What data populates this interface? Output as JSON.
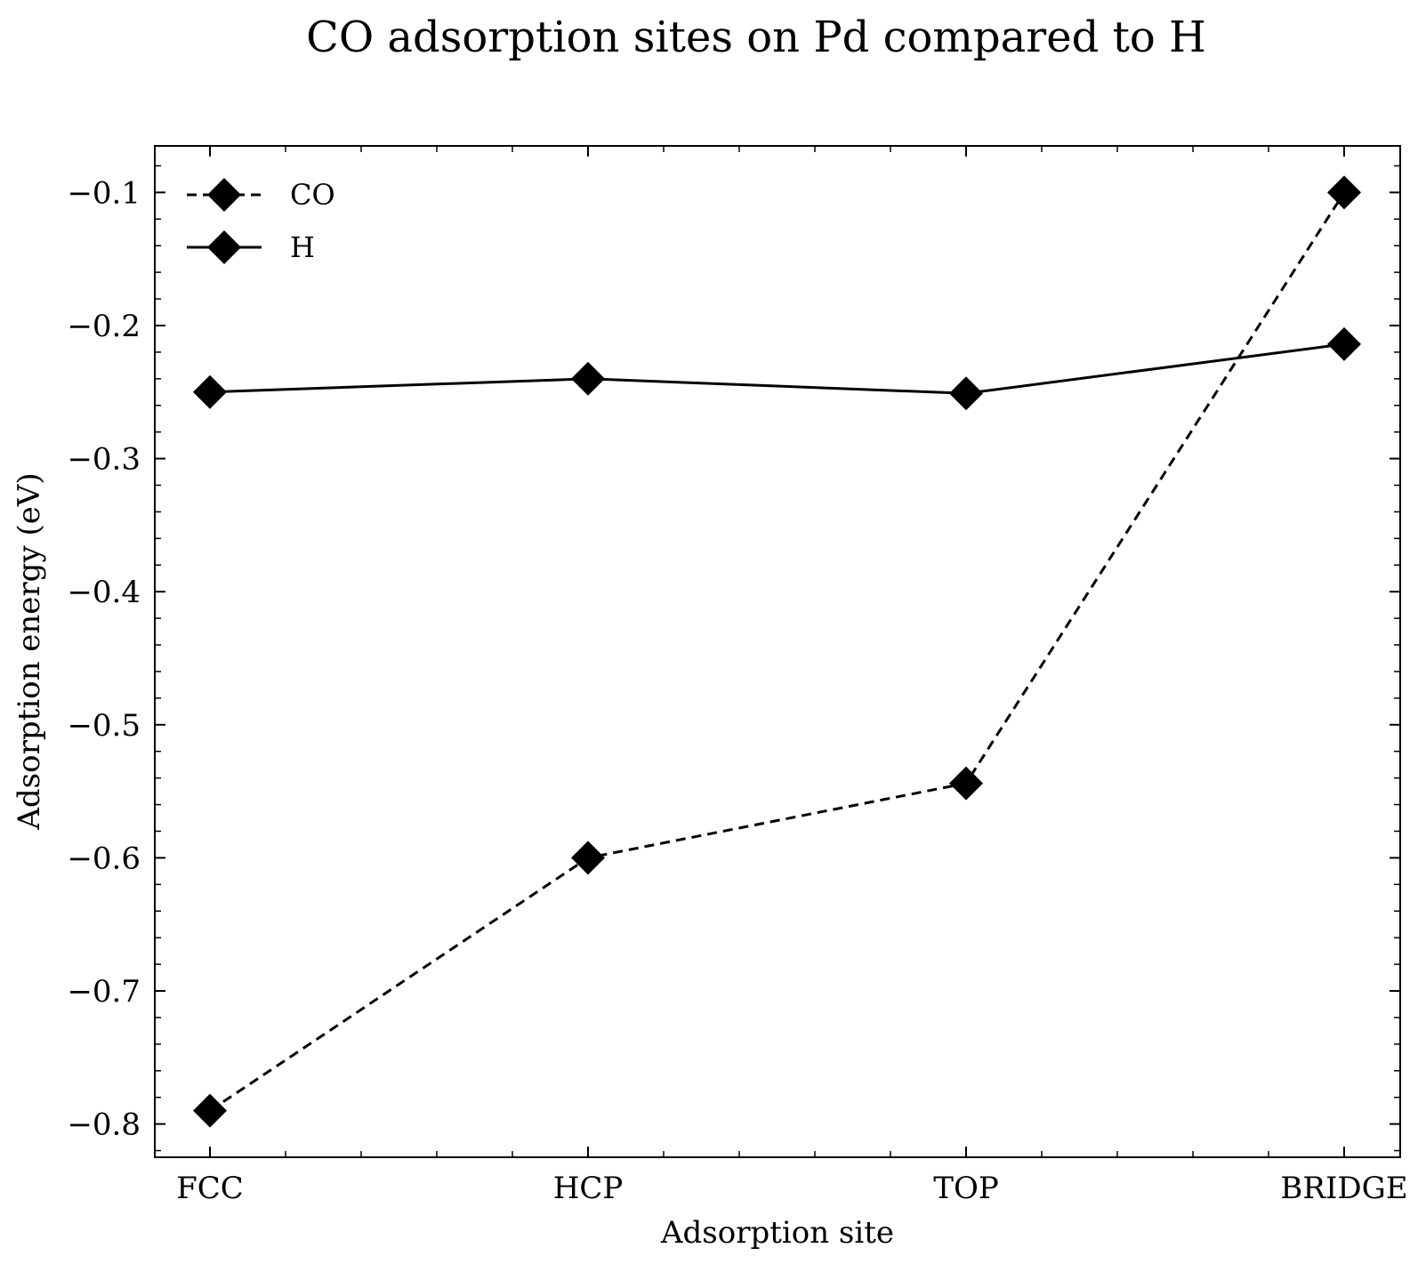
{
  "chart_data": {
    "type": "line",
    "title": "CO adsorption sites on Pd compared to H",
    "xlabel": "Adsorption site",
    "ylabel": "Adsorption energy (eV)",
    "categories": [
      "FCC",
      "HCP",
      "TOP",
      "BRIDGE"
    ],
    "ylim": [
      -0.825,
      -0.065
    ],
    "yticks": [
      -0.8,
      -0.7,
      -0.6,
      -0.5,
      -0.4,
      -0.3,
      -0.2,
      -0.1
    ],
    "ytick_labels": [
      "−0.8",
      "−0.7",
      "−0.6",
      "−0.5",
      "−0.4",
      "−0.3",
      "−0.2",
      "−0.1"
    ],
    "grid": false,
    "legend_position": "top-left",
    "series": [
      {
        "name": "CO",
        "values": [
          -0.79,
          -0.6,
          -0.544,
          -0.1
        ],
        "line_style": "dashed",
        "marker": "diamond",
        "color": "#000000"
      },
      {
        "name": "H",
        "values": [
          -0.25,
          -0.24,
          -0.251,
          -0.214
        ],
        "line_style": "solid",
        "marker": "diamond",
        "color": "#000000"
      }
    ]
  }
}
